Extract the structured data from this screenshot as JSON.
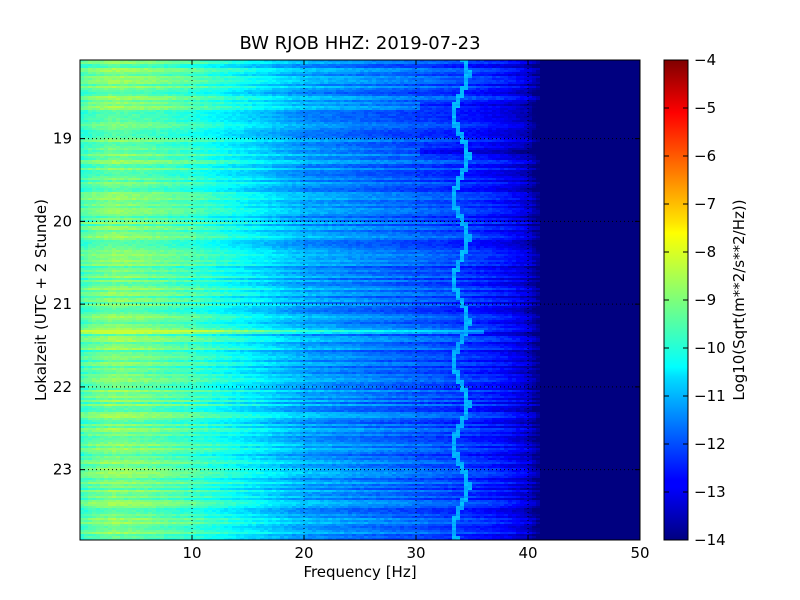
{
  "chart_data": {
    "type": "heatmap",
    "title": "BW RJOB HHZ: 2019-07-23",
    "xlabel": "Frequency [Hz]",
    "ylabel": "Lokalzeit (UTC + 2 Stunde)",
    "xlim": [
      0,
      50
    ],
    "ylim": [
      18.05,
      23.85
    ],
    "x_ticks": [
      10,
      20,
      30,
      40,
      50
    ],
    "y_ticks": [
      19,
      20,
      21,
      22,
      23
    ],
    "grid": true,
    "colormap": "jet",
    "colorbar": {
      "label": "Log10(Sqrt(m**2/s**2/Hz))",
      "range": [
        -14,
        -4
      ],
      "ticks": [
        -4,
        -5,
        -6,
        -7,
        -8,
        -9,
        -10,
        -11,
        -12,
        -13,
        -14
      ]
    },
    "spectral_profile": {
      "frequency_hz": [
        0,
        1,
        3,
        6,
        10,
        14,
        18,
        20,
        24,
        28,
        32,
        36,
        38,
        40,
        41,
        50
      ],
      "level": [
        -9.6,
        -9.3,
        -9.0,
        -9.2,
        -9.6,
        -10.2,
        -10.8,
        -11.1,
        -11.4,
        -11.7,
        -12.0,
        -12.4,
        -12.7,
        -13.2,
        -14,
        -14
      ]
    },
    "features": [
      {
        "type": "horizontal_line",
        "time_hours": 21.33,
        "level": -8.3
      },
      {
        "type": "tonal_line",
        "frequency_hz": 34,
        "level": -11.0
      }
    ]
  }
}
